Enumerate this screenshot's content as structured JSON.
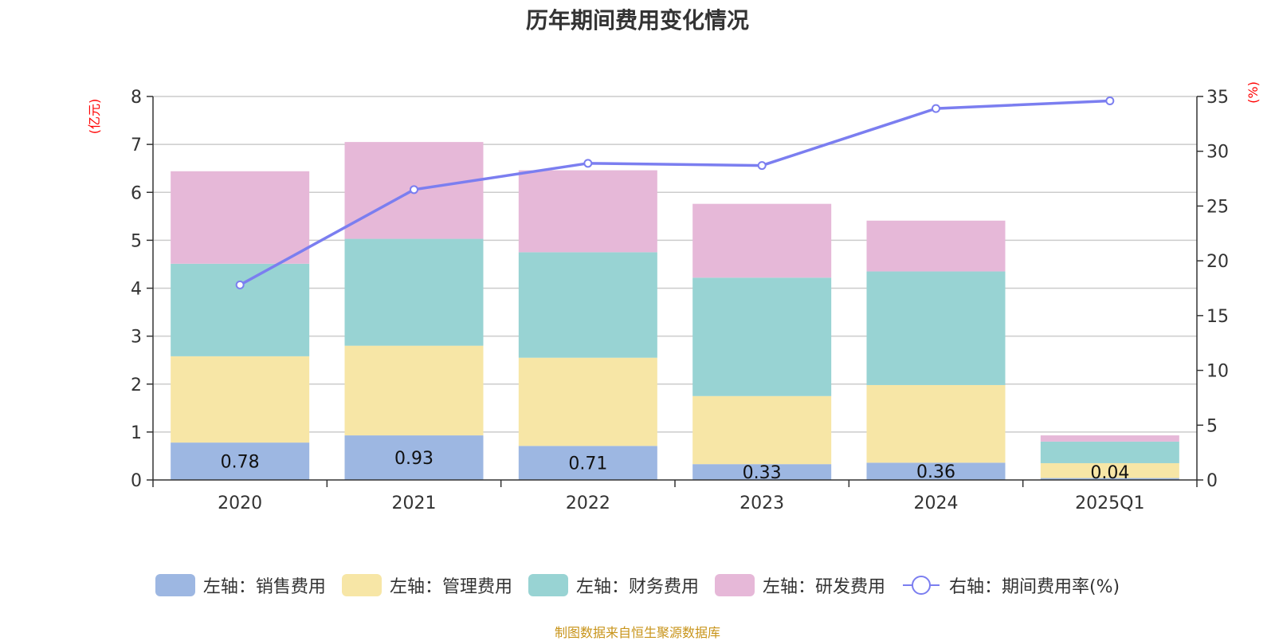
{
  "chart_data": {
    "type": "bar",
    "stacked": true,
    "title": "历年期间费用变化情况",
    "categories": [
      "2020",
      "2021",
      "2022",
      "2023",
      "2024",
      "2025Q1"
    ],
    "y_left": {
      "unit_label": "(亿元)",
      "range": [
        0,
        8
      ],
      "ticks": [
        "0",
        "1",
        "2",
        "3",
        "4",
        "5",
        "6",
        "7",
        "8"
      ]
    },
    "y_right": {
      "unit_label": "(%)",
      "range": [
        0,
        35
      ],
      "ticks": [
        "0",
        "5",
        "10",
        "15",
        "20",
        "25",
        "30",
        "35"
      ]
    },
    "series": [
      {
        "name": "左轴：销售费用",
        "axis": "left",
        "color": "#9db7e2",
        "values": [
          0.78,
          0.93,
          0.71,
          0.33,
          0.36,
          0.04
        ],
        "labels": [
          "0.78",
          "0.93",
          "0.71",
          "0.33",
          "0.36",
          "0.04"
        ]
      },
      {
        "name": "左轴：管理费用",
        "axis": "left",
        "color": "#f7e6a6",
        "values": [
          1.8,
          1.87,
          1.84,
          1.42,
          1.62,
          0.31
        ]
      },
      {
        "name": "左轴：财务费用",
        "axis": "left",
        "color": "#98d3d3",
        "values": [
          1.93,
          2.23,
          2.2,
          2.47,
          2.37,
          0.45
        ]
      },
      {
        "name": "左轴：研发费用",
        "axis": "left",
        "color": "#e6b8d8",
        "values": [
          1.93,
          2.02,
          1.71,
          1.54,
          1.06,
          0.13
        ]
      },
      {
        "name": "右轴：期间费用率(%)",
        "axis": "right",
        "type": "line",
        "color": "#7b7ef0",
        "values": [
          17.8,
          26.5,
          28.9,
          28.7,
          33.9,
          34.6
        ]
      }
    ],
    "legend_position": "bottom",
    "grid": true
  },
  "source_note": "制图数据来自恒生聚源数据库"
}
